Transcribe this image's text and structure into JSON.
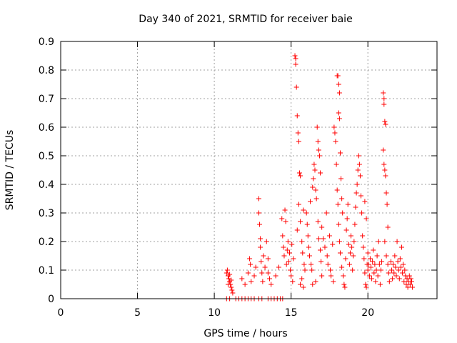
{
  "chart_data": {
    "type": "scatter",
    "title": "Day 340 of 2021, SRMTID for receiver baie",
    "xlabel": "GPS time / hours",
    "ylabel": "SRMTID / TECUs",
    "xlim": [
      0,
      24.5
    ],
    "ylim": [
      0,
      0.9
    ],
    "xticks": [
      0,
      5,
      10,
      15,
      20
    ],
    "xtick_labels": [
      "0",
      "5",
      "10",
      "15",
      "20"
    ],
    "yticks": [
      0,
      0.1,
      0.2,
      0.3,
      0.4,
      0.5,
      0.6,
      0.7,
      0.8,
      0.9
    ],
    "ytick_labels": [
      "0",
      "0.1",
      "0.2",
      "0.3",
      "0.4",
      "0.5",
      "0.6",
      "0.7",
      "0.8",
      "0.9"
    ],
    "grid": true,
    "legend": "none",
    "marker": "+",
    "color": "#ff0000",
    "series": [
      {
        "name": "SRMTID",
        "points": [
          [
            10.8,
            0.09
          ],
          [
            10.85,
            0.1
          ],
          [
            10.9,
            0.08
          ],
          [
            10.95,
            0.07
          ],
          [
            11.0,
            0.06
          ],
          [
            11.05,
            0.05
          ],
          [
            11.1,
            0.04
          ],
          [
            11.15,
            0.03
          ],
          [
            11.2,
            0.02
          ],
          [
            10.9,
            0.05
          ],
          [
            11.0,
            0.085
          ],
          [
            11.1,
            0.065
          ],
          [
            10.8,
            0
          ],
          [
            11.0,
            0
          ],
          [
            11.4,
            0
          ],
          [
            11.6,
            0
          ],
          [
            11.8,
            0
          ],
          [
            12.0,
            0
          ],
          [
            12.2,
            0
          ],
          [
            12.4,
            0
          ],
          [
            12.6,
            0
          ],
          [
            12.9,
            0
          ],
          [
            13.1,
            0
          ],
          [
            13.5,
            0
          ],
          [
            13.7,
            0
          ],
          [
            13.9,
            0
          ],
          [
            14.1,
            0
          ],
          [
            14.3,
            0
          ],
          [
            14.45,
            0
          ],
          [
            11.8,
            0.07
          ],
          [
            12.0,
            0.05
          ],
          [
            12.2,
            0.09
          ],
          [
            12.3,
            0.14
          ],
          [
            12.35,
            0.12
          ],
          [
            12.4,
            0.06
          ],
          [
            12.6,
            0.08
          ],
          [
            12.7,
            0.11
          ],
          [
            12.9,
            0.35
          ],
          [
            12.9,
            0.3
          ],
          [
            12.95,
            0.26
          ],
          [
            13.0,
            0.21
          ],
          [
            13.0,
            0.18
          ],
          [
            13.05,
            0.13
          ],
          [
            13.1,
            0.09
          ],
          [
            13.15,
            0.06
          ],
          [
            13.2,
            0.15
          ],
          [
            13.3,
            0.11
          ],
          [
            13.4,
            0.2
          ],
          [
            13.5,
            0.14
          ],
          [
            13.5,
            0.09
          ],
          [
            13.6,
            0.07
          ],
          [
            13.7,
            0.05
          ],
          [
            14.0,
            0.08
          ],
          [
            14.2,
            0.11
          ],
          [
            14.4,
            0.28
          ],
          [
            14.45,
            0.22
          ],
          [
            14.5,
            0.18
          ],
          [
            14.55,
            0.15
          ],
          [
            14.6,
            0.31
          ],
          [
            14.65,
            0.27
          ],
          [
            14.7,
            0.12
          ],
          [
            14.75,
            0.17
          ],
          [
            14.8,
            0.2
          ],
          [
            14.85,
            0.13
          ],
          [
            14.9,
            0.16
          ],
          [
            14.95,
            0.1
          ],
          [
            15.0,
            0.08
          ],
          [
            15.05,
            0.19
          ],
          [
            15.1,
            0.06
          ],
          [
            15.15,
            0.14
          ],
          [
            15.25,
            0.85
          ],
          [
            15.3,
            0.84
          ],
          [
            15.3,
            0.82
          ],
          [
            15.35,
            0.74
          ],
          [
            15.4,
            0.64
          ],
          [
            15.45,
            0.58
          ],
          [
            15.5,
            0.55
          ],
          [
            15.55,
            0.44
          ],
          [
            15.6,
            0.43
          ],
          [
            15.4,
            0.24
          ],
          [
            15.5,
            0.33
          ],
          [
            15.6,
            0.27
          ],
          [
            15.7,
            0.2
          ],
          [
            15.75,
            0.16
          ],
          [
            15.8,
            0.31
          ],
          [
            15.85,
            0.12
          ],
          [
            15.9,
            0.1
          ],
          [
            15.7,
            0.07
          ],
          [
            15.6,
            0.05
          ],
          [
            15.8,
            0.04
          ],
          [
            16.0,
            0.3
          ],
          [
            16.05,
            0.26
          ],
          [
            16.1,
            0.22
          ],
          [
            16.15,
            0.18
          ],
          [
            16.2,
            0.15
          ],
          [
            16.25,
            0.34
          ],
          [
            16.3,
            0.12
          ],
          [
            16.35,
            0.1
          ],
          [
            16.4,
            0.39
          ],
          [
            16.45,
            0.42
          ],
          [
            16.5,
            0.47
          ],
          [
            16.55,
            0.45
          ],
          [
            16.6,
            0.38
          ],
          [
            16.65,
            0.35
          ],
          [
            16.7,
            0.6
          ],
          [
            16.75,
            0.55
          ],
          [
            16.8,
            0.52
          ],
          [
            16.85,
            0.5
          ],
          [
            16.9,
            0.44
          ],
          [
            16.75,
            0.27
          ],
          [
            16.8,
            0.21
          ],
          [
            16.9,
            0.17
          ],
          [
            16.95,
            0.13
          ],
          [
            17.0,
            0.08
          ],
          [
            16.6,
            0.06
          ],
          [
            16.4,
            0.05
          ],
          [
            17.0,
            0.25
          ],
          [
            17.1,
            0.21
          ],
          [
            17.2,
            0.18
          ],
          [
            17.3,
            0.3
          ],
          [
            17.35,
            0.15
          ],
          [
            17.4,
            0.12
          ],
          [
            17.5,
            0.22
          ],
          [
            17.55,
            0.1
          ],
          [
            17.6,
            0.08
          ],
          [
            17.7,
            0.19
          ],
          [
            17.75,
            0.06
          ],
          [
            17.8,
            0.6
          ],
          [
            17.85,
            0.58
          ],
          [
            17.9,
            0.55
          ],
          [
            17.95,
            0.47
          ],
          [
            18.0,
            0.38
          ],
          [
            18.05,
            0.33
          ],
          [
            18.1,
            0.26
          ],
          [
            18.15,
            0.2
          ],
          [
            18.0,
            0.78
          ],
          [
            18.05,
            0.78
          ],
          [
            18.1,
            0.75
          ],
          [
            18.15,
            0.72
          ],
          [
            18.1,
            0.65
          ],
          [
            18.15,
            0.63
          ],
          [
            18.2,
            0.51
          ],
          [
            18.25,
            0.42
          ],
          [
            18.3,
            0.35
          ],
          [
            18.35,
            0.3
          ],
          [
            18.2,
            0.16
          ],
          [
            18.3,
            0.11
          ],
          [
            18.4,
            0.08
          ],
          [
            18.45,
            0.05
          ],
          [
            18.5,
            0.04
          ],
          [
            18.55,
            0.14
          ],
          [
            18.6,
            0.24
          ],
          [
            18.65,
            0.28
          ],
          [
            18.7,
            0.33
          ],
          [
            18.75,
            0.19
          ],
          [
            18.8,
            0.12
          ],
          [
            18.85,
            0.16
          ],
          [
            18.9,
            0.22
          ],
          [
            18.95,
            0.18
          ],
          [
            19.0,
            0.1
          ],
          [
            19.05,
            0.15
          ],
          [
            19.1,
            0.2
          ],
          [
            19.15,
            0.26
          ],
          [
            19.2,
            0.32
          ],
          [
            19.25,
            0.37
          ],
          [
            19.3,
            0.4
          ],
          [
            19.35,
            0.45
          ],
          [
            19.4,
            0.5
          ],
          [
            19.45,
            0.47
          ],
          [
            19.5,
            0.43
          ],
          [
            19.55,
            0.36
          ],
          [
            19.6,
            0.3
          ],
          [
            19.65,
            0.22
          ],
          [
            19.7,
            0.18
          ],
          [
            19.75,
            0.14
          ],
          [
            19.8,
            0.09
          ],
          [
            19.85,
            0.05
          ],
          [
            19.9,
            0.04
          ],
          [
            19.95,
            0.12
          ],
          [
            20.0,
            0.16
          ],
          [
            19.9,
            0.28
          ],
          [
            19.8,
            0.34
          ],
          [
            20.0,
            0.1
          ],
          [
            20.05,
            0.12
          ],
          [
            20.1,
            0.08
          ],
          [
            20.15,
            0.14
          ],
          [
            20.2,
            0.11
          ],
          [
            20.25,
            0.07
          ],
          [
            20.3,
            0.13
          ],
          [
            20.35,
            0.17
          ],
          [
            20.4,
            0.09
          ],
          [
            20.45,
            0.12
          ],
          [
            20.5,
            0.06
          ],
          [
            20.55,
            0.1
          ],
          [
            20.6,
            0.15
          ],
          [
            20.65,
            0.08
          ],
          [
            20.7,
            0.2
          ],
          [
            20.75,
            0.12
          ],
          [
            20.8,
            0.05
          ],
          [
            20.85,
            0.1
          ],
          [
            20.9,
            0.13
          ],
          [
            21.0,
            0.72
          ],
          [
            21.05,
            0.7
          ],
          [
            21.05,
            0.68
          ],
          [
            21.1,
            0.62
          ],
          [
            21.15,
            0.61
          ],
          [
            21.0,
            0.52
          ],
          [
            21.05,
            0.47
          ],
          [
            21.1,
            0.45
          ],
          [
            21.15,
            0.43
          ],
          [
            21.2,
            0.37
          ],
          [
            21.25,
            0.33
          ],
          [
            21.3,
            0.25
          ],
          [
            21.1,
            0.2
          ],
          [
            21.2,
            0.15
          ],
          [
            21.3,
            0.12
          ],
          [
            21.35,
            0.09
          ],
          [
            21.4,
            0.06
          ],
          [
            21.5,
            0.13
          ],
          [
            21.55,
            0.1
          ],
          [
            21.6,
            0.07
          ],
          [
            21.65,
            0.12
          ],
          [
            21.7,
            0.09
          ],
          [
            21.75,
            0.15
          ],
          [
            21.8,
            0.11
          ],
          [
            21.85,
            0.08
          ],
          [
            21.9,
            0.2
          ],
          [
            21.95,
            0.13
          ],
          [
            22.0,
            0.1
          ],
          [
            22.05,
            0.07
          ],
          [
            22.1,
            0.14
          ],
          [
            22.15,
            0.11
          ],
          [
            22.2,
            0.18
          ],
          [
            22.25,
            0.09
          ],
          [
            22.3,
            0.12
          ],
          [
            22.35,
            0.06
          ],
          [
            22.4,
            0.1
          ],
          [
            22.45,
            0.08
          ],
          [
            22.5,
            0.05
          ],
          [
            22.55,
            0.07
          ],
          [
            22.6,
            0.04
          ],
          [
            22.65,
            0.06
          ],
          [
            22.7,
            0.08
          ],
          [
            22.75,
            0.05
          ],
          [
            22.8,
            0.07
          ],
          [
            22.85,
            0.06
          ],
          [
            22.9,
            0.04
          ]
        ]
      }
    ]
  }
}
